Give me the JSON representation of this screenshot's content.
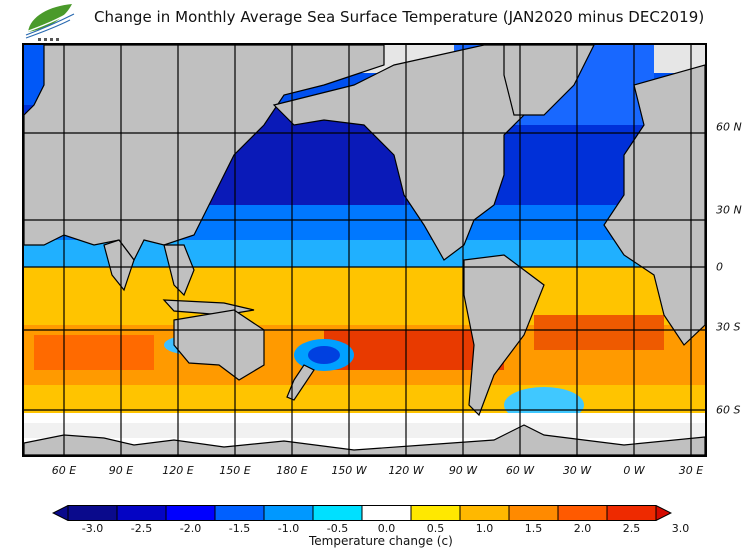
{
  "title": "Change in Monthly Average Sea Surface Temperature (JAN2020 minus DEC2019)",
  "logo": {
    "name": "organization-leaf-logo",
    "colors": [
      "#4a9a2a",
      "#2a6ab0"
    ]
  },
  "map": {
    "projection": "equirectangular",
    "center_longitude": "180",
    "lon_range": "40E to 40E (wrapping)",
    "lat_range": "approx 80N to 75S",
    "land_color": "#c0c0c0",
    "ice_color": "#e6e6e6",
    "grid_color": "#000000",
    "lon_labels": [
      "60 E",
      "90 E",
      "120 E",
      "150 E",
      "180 E",
      "150 W",
      "120 W",
      "90 W",
      "60 W",
      "30 W",
      "0 W",
      "30 E"
    ],
    "lat_labels": [
      "60 N",
      "30 N",
      "0",
      "30 S",
      "60 S"
    ],
    "regions": [
      {
        "name": "north-pacific",
        "anomaly": "cooling",
        "level": -2.0
      },
      {
        "name": "north-atlantic",
        "anomaly": "cooling",
        "level": -1.5
      },
      {
        "name": "indian-ocean-north",
        "anomaly": "cooling",
        "level": -1.0
      },
      {
        "name": "south-pacific-central",
        "anomaly": "warming",
        "level": 2.5
      },
      {
        "name": "south-atlantic",
        "anomaly": "warming",
        "level": 2.0
      },
      {
        "name": "south-indian-ocean",
        "anomaly": "warming",
        "level": 1.5
      },
      {
        "name": "southern-ocean",
        "anomaly": "neutral",
        "level": 0.0
      }
    ]
  },
  "colorbar": {
    "title": "Temperature change  (c)",
    "ticks": [
      "-3.0",
      "-2.5",
      "-2.0",
      "-1.5",
      "-1.0",
      "-0.5",
      "0.0",
      "0.5",
      "1.0",
      "1.5",
      "2.0",
      "2.5",
      "3.0"
    ],
    "bins": [
      {
        "range": "< -3.0",
        "color": "#0a0a8c"
      },
      {
        "range": "-3.0 to -2.5",
        "color": "#0a0a8c"
      },
      {
        "range": "-2.5 to -2.0",
        "color": "#0404c4"
      },
      {
        "range": "-2.0 to -1.5",
        "color": "#0000ff"
      },
      {
        "range": "-1.5 to -1.0",
        "color": "#0060ff"
      },
      {
        "range": "-1.0 to -0.5",
        "color": "#0098ff"
      },
      {
        "range": "-0.5 to 0.0",
        "color": "#00e0ff"
      },
      {
        "range": "0.0 to 0.5",
        "color": "#ffffff"
      },
      {
        "range": "0.5 to 1.0",
        "color": "#ffe800"
      },
      {
        "range": "1.0 to 1.5",
        "color": "#ffb800"
      },
      {
        "range": "1.5 to 2.0",
        "color": "#ff8a00"
      },
      {
        "range": "2.0 to 2.5",
        "color": "#ff5a00"
      },
      {
        "range": "2.5 to 3.0",
        "color": "#ee2a00"
      },
      {
        "range": "> 3.0",
        "color": "#d40a00"
      }
    ]
  }
}
